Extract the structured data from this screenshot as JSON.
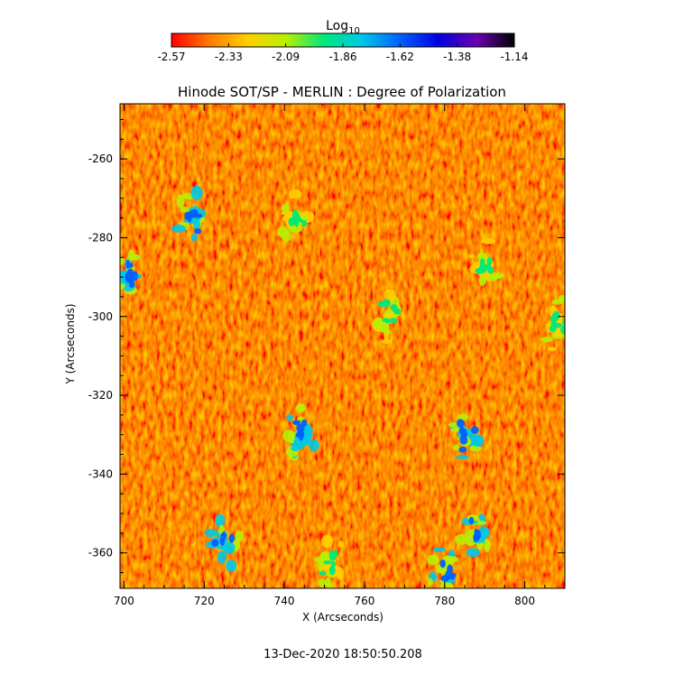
{
  "chart_data": {
    "type": "heatmap",
    "title": "Hinode SOT/SP - MERLIN : Degree of Polarization",
    "xlabel": "X (Arcseconds)",
    "ylabel": "Y (Arcseconds)",
    "xlim": [
      699,
      810
    ],
    "ylim": [
      -369,
      -246
    ],
    "x_ticks": [
      700,
      720,
      740,
      760,
      780,
      800
    ],
    "y_ticks": [
      -260,
      -280,
      -300,
      -320,
      -340,
      -360
    ],
    "colorbar": {
      "label": "Log",
      "label_subscript": "10",
      "range": [
        -2.57,
        -1.14
      ],
      "ticks": [
        "-2.57",
        "-2.33",
        "-2.09",
        "-1.86",
        "-1.62",
        "-1.38",
        "-1.14"
      ],
      "colors": [
        "#ff0000",
        "#ff7a00",
        "#ffd000",
        "#b8f000",
        "#00e87a",
        "#00c8e8",
        "#0060ff",
        "#0000e0",
        "#6a00b0",
        "#000000"
      ]
    },
    "features": [
      {
        "x": 717,
        "y": -275,
        "value": -1.62
      },
      {
        "x": 701,
        "y": -290,
        "value": -1.62
      },
      {
        "x": 743,
        "y": -275,
        "value": -1.86
      },
      {
        "x": 766,
        "y": -300,
        "value": -1.86
      },
      {
        "x": 744,
        "y": -330,
        "value": -1.62
      },
      {
        "x": 725,
        "y": -357,
        "value": -1.62
      },
      {
        "x": 785,
        "y": -330,
        "value": -1.62
      },
      {
        "x": 788,
        "y": -355,
        "value": -1.62
      },
      {
        "x": 790,
        "y": -287,
        "value": -1.86
      },
      {
        "x": 808,
        "y": -302,
        "value": -1.86
      },
      {
        "x": 751,
        "y": -362,
        "value": -1.86
      },
      {
        "x": 780,
        "y": -365,
        "value": -1.62
      }
    ]
  },
  "footer": {
    "timestamp": "13-Dec-2020 18:50:50.208"
  }
}
